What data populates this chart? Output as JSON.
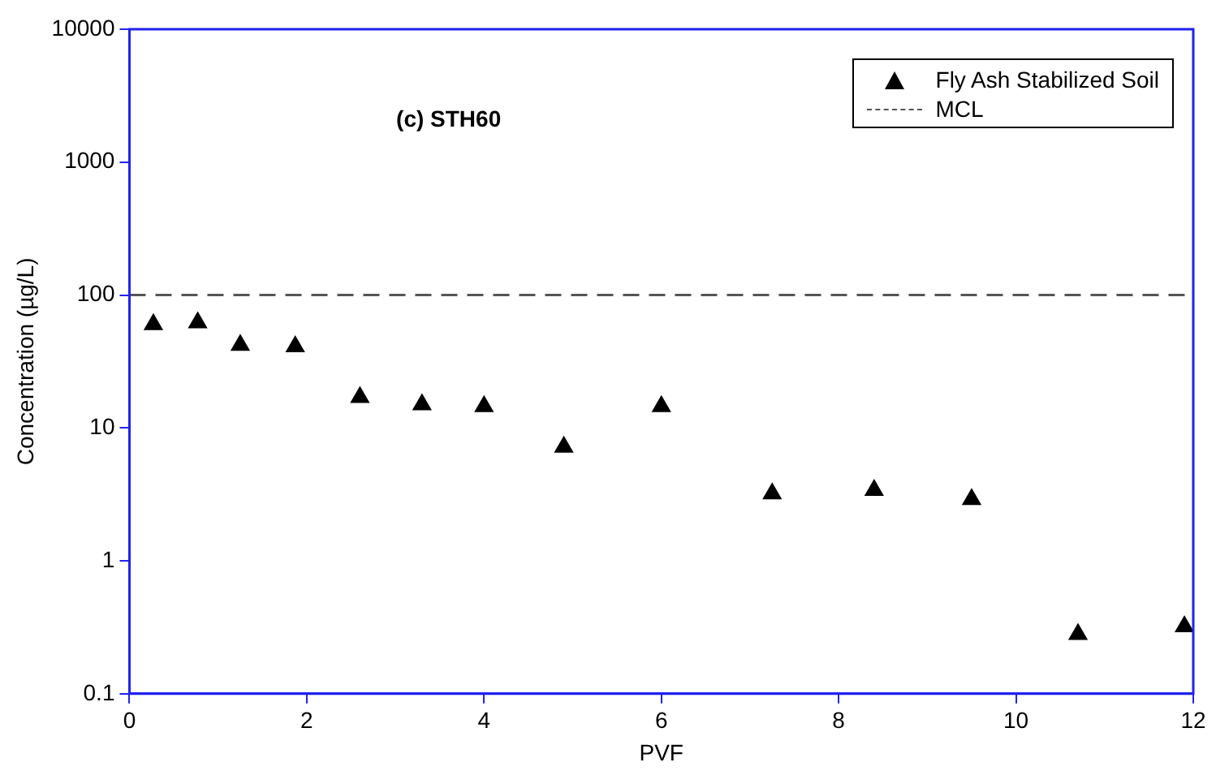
{
  "chart_data": {
    "type": "scatter",
    "xlabel": "PVF",
    "ylabel": "Concentration (µg/L)",
    "annotations": [
      "(c) STH60"
    ],
    "series": [
      {
        "name": "Fly Ash Stabilized Soil",
        "color": "#000000",
        "marker": "triangle",
        "x": [
          0.27,
          0.77,
          1.25,
          1.87,
          2.6,
          3.3,
          4.0,
          4.9,
          6.0,
          7.25,
          8.4,
          9.5,
          10.7,
          11.9
        ],
        "values": [
          60,
          62,
          42,
          41,
          17,
          15,
          14.5,
          7.2,
          14.5,
          3.2,
          3.4,
          2.9,
          0.28,
          0.32
        ]
      }
    ],
    "ref_lines": [
      {
        "axis": "y",
        "value": 100,
        "label": "MCL",
        "color": "#555555",
        "line_style": "dashed"
      }
    ],
    "log": "y",
    "xlim": [
      0,
      12
    ],
    "xticks": [
      0,
      2,
      4,
      6,
      8,
      10,
      12
    ],
    "ylim": [
      0.1,
      10000
    ],
    "yticks": [
      0.1,
      1,
      10,
      100,
      1000,
      10000
    ],
    "grid": false,
    "legend": "top right"
  }
}
